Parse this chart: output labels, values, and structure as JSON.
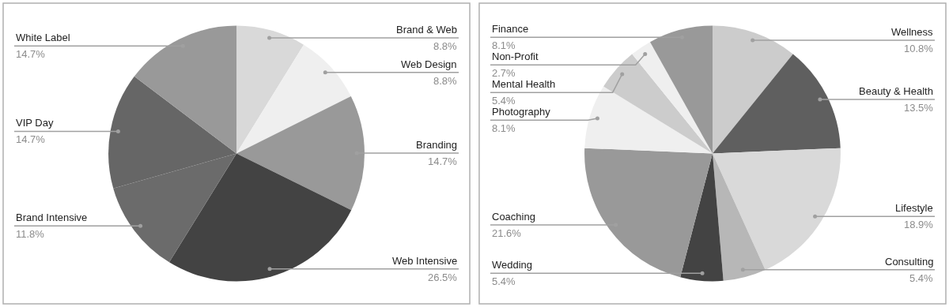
{
  "chart_data": [
    {
      "type": "pie",
      "categories": [
        "Brand & Web",
        "Web Design",
        "Branding",
        "Web Intensive",
        "Brand Intensive",
        "VIP Day",
        "White Label"
      ],
      "values": [
        8.8,
        8.8,
        14.7,
        26.5,
        11.8,
        14.7,
        14.7
      ],
      "colors": [
        "#d9d9d9",
        "#efefef",
        "#999999",
        "#434343",
        "#6b6b6b",
        "#666666",
        "#999999"
      ],
      "value_labels": [
        "8.8%",
        "8.8%",
        "14.7%",
        "26.5%",
        "11.8%",
        "14.7%",
        "14.7%"
      ]
    },
    {
      "type": "pie",
      "categories": [
        "Wellness",
        "Beauty & Health",
        "Lifestyle",
        "Consulting",
        "Wedding",
        "Coaching",
        "Photography",
        "Mental Health",
        "Non-Profit",
        "Finance"
      ],
      "values": [
        10.8,
        13.5,
        18.9,
        5.4,
        5.4,
        21.6,
        8.1,
        5.4,
        2.7,
        8.1
      ],
      "colors": [
        "#cccccc",
        "#5f5f5f",
        "#d9d9d9",
        "#b7b7b7",
        "#434343",
        "#999999",
        "#efefef",
        "#cccccc",
        "#efefef",
        "#999999"
      ],
      "value_labels": [
        "10.8%",
        "13.5%",
        "18.9%",
        "5.4%",
        "5.4%",
        "21.6%",
        "8.1%",
        "5.4%",
        "2.7%",
        "8.1%"
      ]
    }
  ]
}
